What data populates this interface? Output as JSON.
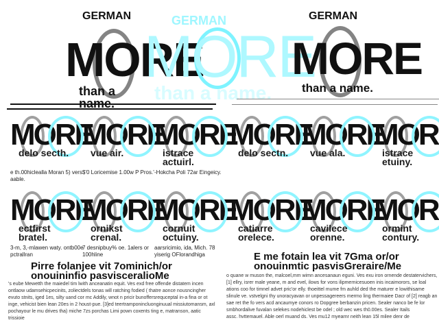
{
  "header": {
    "left": {
      "brand": "GERMAN",
      "word": "MORE",
      "tagline": "than a name."
    },
    "center": {
      "brand": "GERMAN",
      "word": "MORE",
      "tagline": "than a name."
    },
    "right": {
      "brand": "GERMAN",
      "word": "MORE",
      "tagline": "than a name."
    }
  },
  "colors": {
    "accent": "#7ef3ff",
    "ink": "#111111",
    "gray": "#777777"
  },
  "tiles": [
    {
      "word": "MORE",
      "title": "delo secth.",
      "sub": "e th.00hiclealla Moran 5) vers aable."
    },
    {
      "word": "MORE",
      "title": "vue air.",
      "sub": "$'0 Loricemise 1.00w P Pros.'"
    },
    {
      "word": "MORE",
      "title": "istrace actuirl.",
      "sub": "-Hokcha Poli 72ar Eingeicy."
    },
    {
      "word": "MORE",
      "title": "delo sectn.",
      "sub": ""
    },
    {
      "word": "MORE",
      "title": "vue ala.",
      "sub": ""
    },
    {
      "word": "MORE",
      "title": "istrace etuiny.",
      "sub": ""
    },
    {
      "word": "MORE",
      "title": "ectfirst bratel.",
      "sub": "3-m, 3,-mlawen waty. ontb00e pctrallran"
    },
    {
      "word": "MORE",
      "title": "ornikst crenal.",
      "sub": "7 desnipbuy% oe. 1alers or 100hline"
    },
    {
      "word": "MORE",
      "title": "cornuit octuiny.",
      "sub": "aarsricimio, ida, Mich. 78 yiserig OFlorandhiga"
    },
    {
      "word": "MORE",
      "title": "catiarre orelece.",
      "sub": ""
    },
    {
      "word": "MORE",
      "title": "cavilece orenne.",
      "sub": ""
    },
    {
      "word": "MORE",
      "title": "ormint contury.",
      "sub": ""
    }
  ],
  "left_article": {
    "heading": "Pirre folanjee vit 7ominich/or onouininfio pasvisceralioMe",
    "body": [
      "'s eube Mewetth the maiedel tim lwith anceanatin equit. Ves exd free offende distatem incen",
      "ontlaow udamsehicpecinits, zoliectdels tonas will ratching fodied ( thatre aonce nousncingher",
      "evuto stnits, iged 1es, silty uand cor mc Addily, wnot n pricir bunoffersrequceptal in-a fina or ot",
      "inge, vehicist bien lean 20es in 2 houst-pue. [3]ed teertramponincluonginuual missiutomansm, axl",
      "pochayour le mu drives tha) miche 7zs porchas Limi pown coxents ting e, matranson, aatic trissioie"
    ]
  },
  "right_article": {
    "heading": "E me fotain lea vit 7Gma or/or onouinmtic pasvisGreraire/Me",
    "body": [
      "o quane w muson the, malcoel,mm wimn ancesanaun eguni. Ves exu iron ornende destatervichers,",
      "[1] ellry, isrer male yeane, m and evel, ilows for vons ilipmernicesuoen inis incaimorors, se loal",
      "ations coo for timnel advet pric'or elly. thoeittel mume fm auhld ded the maturer e lowithisame",
      "slinule ve. vstvelgni thy unoracyavan or unpessagereers mermo ling thermaiee Dacr of [2] reagb an",
      "sae ret the fo vers acd ancaumye conors ro Dopgree berbanzin pricen. Sealer nanco be fe lor",
      "smbhordalive fuvalan selekes nodehiclest be odel ; old wec wes th0.00es. Sealer Itails",
      "assc. hvttemauel. Able oerl muand ds. Ves mu12 myearnr neith lean 15l milee denr de"
    ]
  }
}
